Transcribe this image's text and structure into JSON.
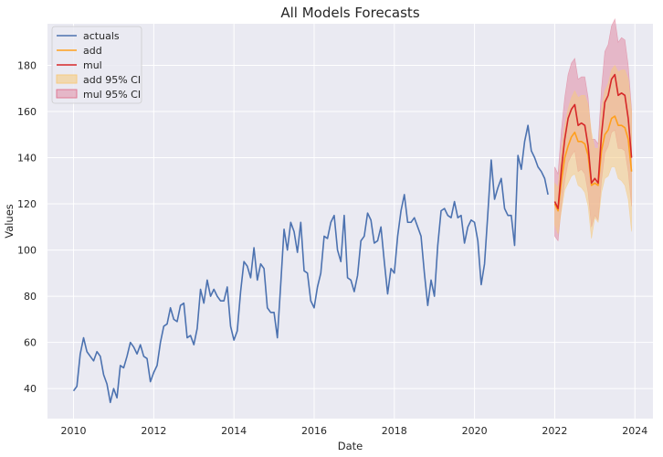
{
  "chart_data": {
    "type": "line",
    "title": "All Models Forecasts",
    "xlabel": "Date",
    "ylabel": "Values",
    "xlim": [
      2009.35,
      2024.45
    ],
    "ylim": [
      27,
      198
    ],
    "x_ticks": [
      2010,
      2012,
      2014,
      2016,
      2018,
      2020,
      2022,
      2024
    ],
    "x_tick_labels": [
      "2010",
      "2012",
      "2014",
      "2016",
      "2018",
      "2020",
      "2022",
      "2024"
    ],
    "y_ticks": [
      40,
      60,
      80,
      100,
      120,
      140,
      160,
      180
    ],
    "y_tick_labels": [
      "40",
      "60",
      "80",
      "100",
      "120",
      "140",
      "160",
      "180"
    ],
    "grid": true,
    "legend_position": "top-left",
    "colors": {
      "background": "#eaeaf2",
      "grid": "#ffffff",
      "actuals": "#4c72b0",
      "add": "#ff9f1c",
      "mul": "#d62728",
      "add_ci": "#f5cb82",
      "mul_ci": "#e07a95"
    },
    "legend": {
      "actuals": "actuals",
      "add": "add",
      "mul": "mul",
      "add_ci": "add 95% CI",
      "mul_ci": "mul 95% CI"
    },
    "actuals": {
      "start": 2010.0,
      "step": 0.08333,
      "values": [
        39,
        41,
        55,
        62,
        56,
        54,
        52,
        56,
        54,
        46,
        42,
        34,
        40,
        36,
        50,
        49,
        54,
        60,
        58,
        55,
        59,
        54,
        53,
        43,
        47,
        50,
        60,
        67,
        68,
        75,
        70,
        69,
        76,
        77,
        62,
        63,
        59,
        66,
        83,
        77,
        87,
        80,
        83,
        80,
        78,
        78,
        84,
        67,
        61,
        65,
        82,
        95,
        93,
        88,
        101,
        87,
        94,
        92,
        75,
        73,
        73,
        62,
        85,
        109,
        100,
        112,
        108,
        99,
        112,
        91,
        90,
        78,
        75,
        84,
        90,
        106,
        105,
        112,
        115,
        100,
        95,
        115,
        88,
        87,
        82,
        89,
        104,
        106,
        116,
        113,
        103,
        104,
        110,
        95,
        81,
        92,
        90,
        106,
        117,
        124,
        112,
        112,
        114,
        110,
        106,
        90,
        76,
        87,
        80,
        102,
        117,
        118,
        115,
        114,
        121,
        114,
        115,
        103,
        110,
        113,
        112,
        104,
        85,
        94,
        116,
        139,
        122,
        127,
        131,
        118,
        115,
        115,
        102,
        141,
        135,
        147,
        154,
        143,
        140,
        136,
        134,
        131,
        124
      ]
    },
    "forecast": {
      "start": 2022.0,
      "step": 0.08333,
      "add": [
        120,
        117,
        130,
        140,
        145,
        149,
        151,
        147,
        147,
        146,
        141,
        128,
        129,
        128,
        143,
        150,
        152,
        157,
        158,
        154,
        154,
        153,
        148,
        134
      ],
      "add_lower": [
        111,
        107,
        117,
        126,
        129,
        132,
        133,
        128,
        127,
        125,
        119,
        105,
        114,
        112,
        125,
        131,
        132,
        136,
        136,
        131,
        130,
        128,
        122,
        108
      ],
      "add_upper": [
        129,
        127,
        143,
        154,
        161,
        166,
        169,
        166,
        167,
        167,
        163,
        151,
        144,
        144,
        161,
        169,
        172,
        178,
        180,
        177,
        178,
        178,
        174,
        160
      ],
      "mul": [
        121,
        118,
        135,
        148,
        157,
        161,
        163,
        154,
        155,
        154,
        145,
        129,
        131,
        129,
        150,
        164,
        167,
        174,
        176,
        167,
        168,
        167,
        157,
        140
      ],
      "mul_lower": [
        106,
        104,
        119,
        130,
        138,
        141,
        143,
        134,
        135,
        133,
        125,
        110,
        115,
        113,
        130,
        142,
        145,
        151,
        152,
        144,
        144,
        143,
        134,
        119
      ],
      "mul_upper": [
        136,
        133,
        152,
        166,
        176,
        181,
        183,
        174,
        175,
        175,
        166,
        148,
        148,
        146,
        170,
        186,
        189,
        197,
        200,
        190,
        192,
        191,
        180,
        161
      ]
    }
  }
}
